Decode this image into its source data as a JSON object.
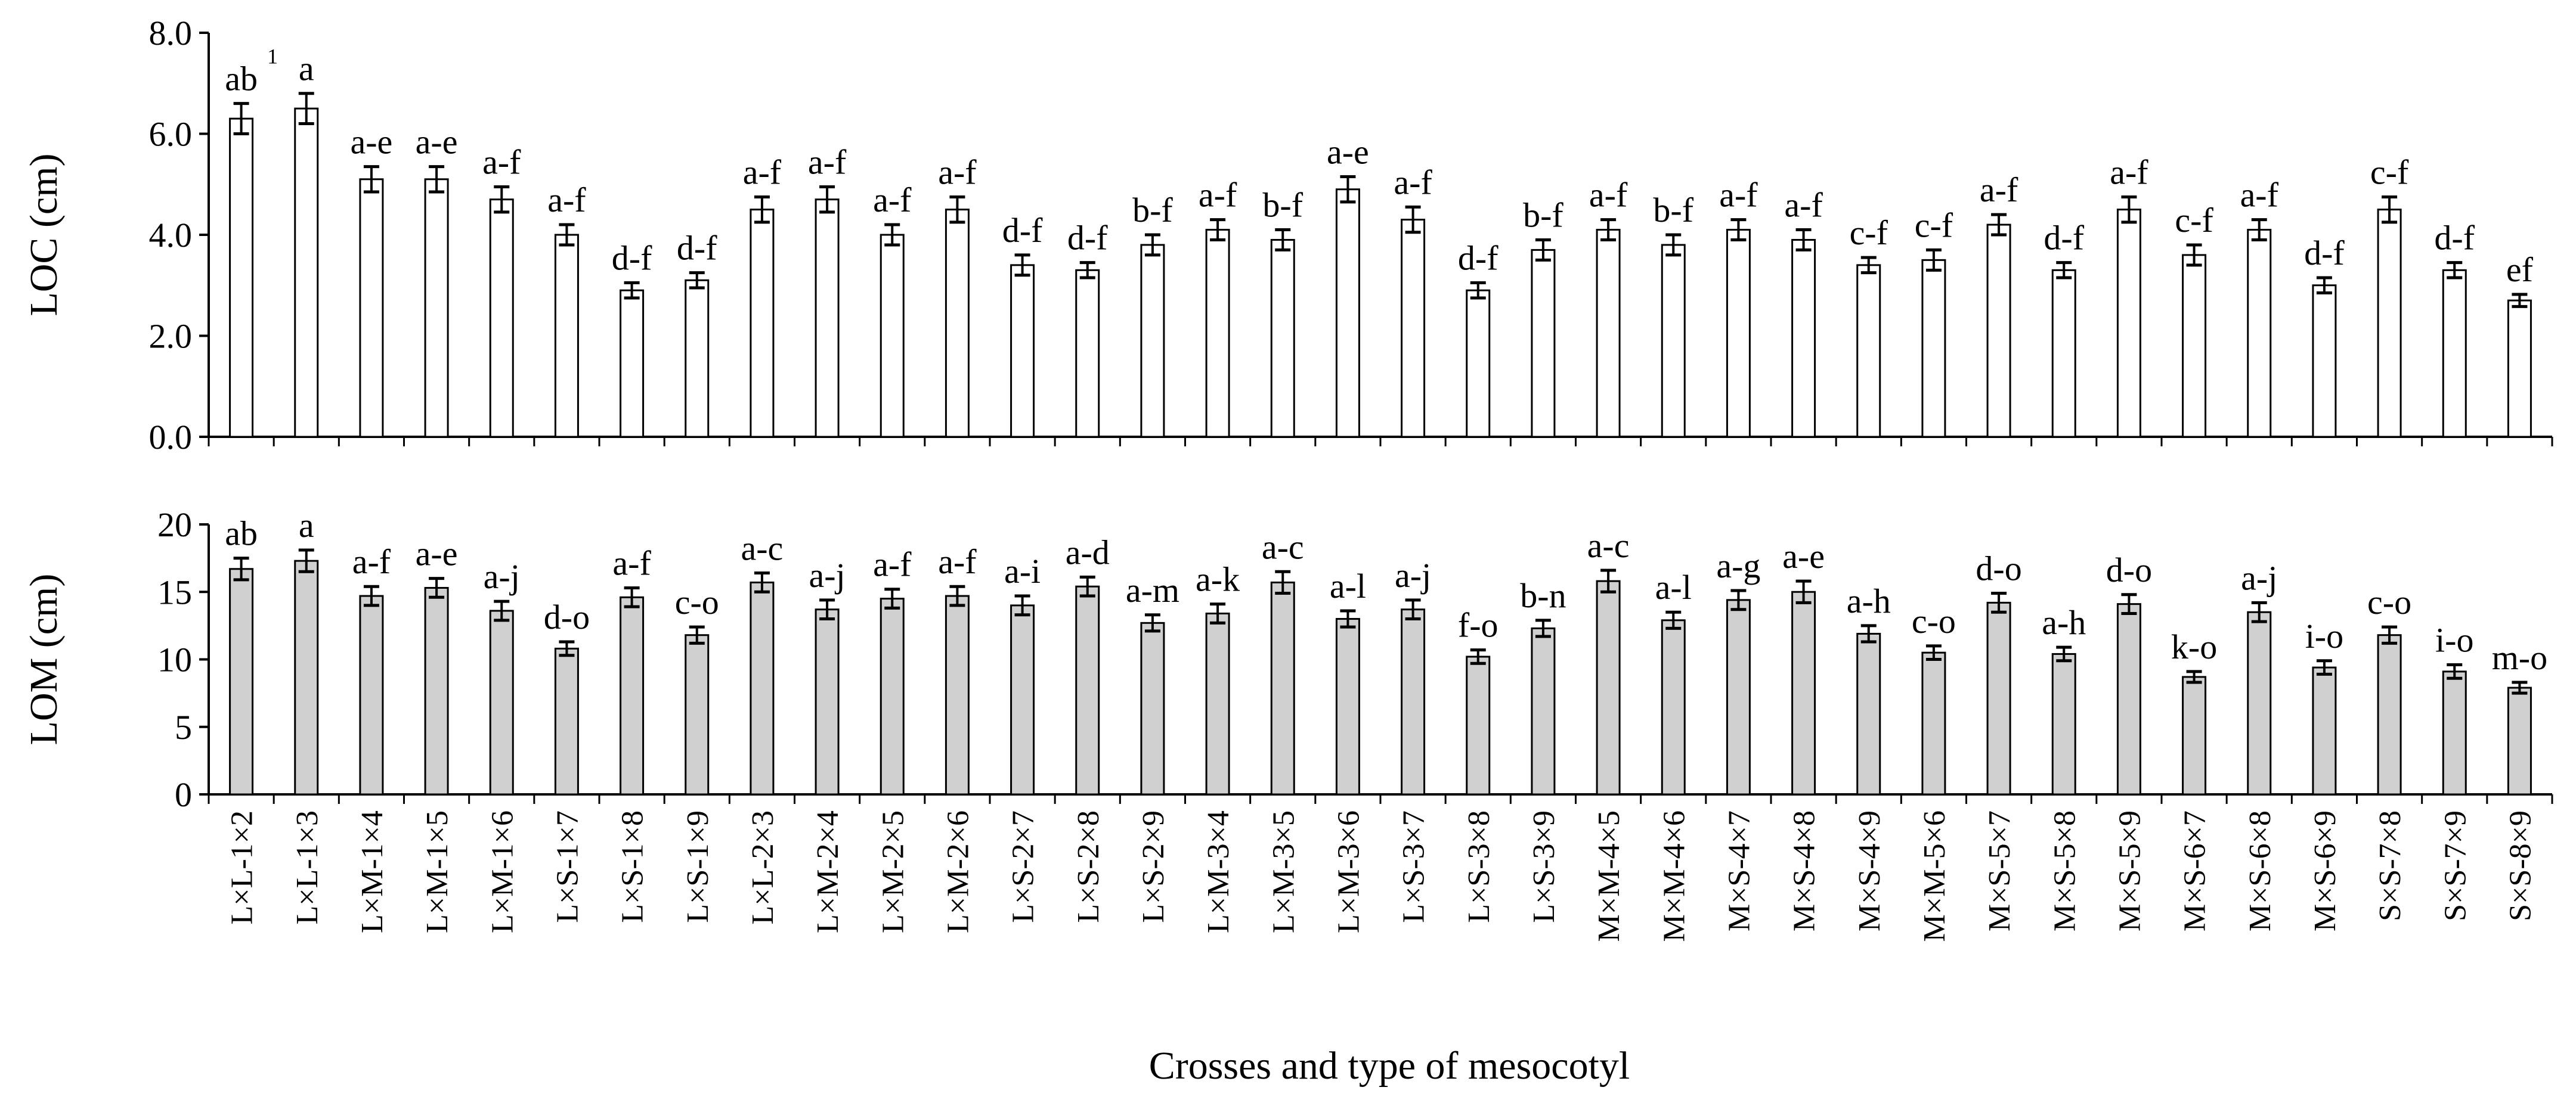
{
  "chart_data": [
    {
      "type": "bar",
      "panel": "top",
      "ylabel": "LOC (cm)",
      "ylim": [
        0,
        8
      ],
      "yticks": [
        "0.0",
        "2.0",
        "4.0",
        "6.0",
        "8.0"
      ],
      "ytick_values": [
        0,
        2,
        4,
        6,
        8
      ],
      "bar_color": "#ffffff",
      "values": [
        6.3,
        6.5,
        5.1,
        5.1,
        4.7,
        4.0,
        2.9,
        3.1,
        4.5,
        4.7,
        4.0,
        4.5,
        3.4,
        3.3,
        3.8,
        4.1,
        3.9,
        4.9,
        4.3,
        2.9,
        3.7,
        4.1,
        3.8,
        4.1,
        3.9,
        3.4,
        3.5,
        4.2,
        3.3,
        4.5,
        3.6,
        4.1,
        3.0,
        4.5,
        3.3,
        2.7
      ],
      "errors": [
        0.3,
        0.3,
        0.25,
        0.25,
        0.25,
        0.2,
        0.15,
        0.15,
        0.25,
        0.25,
        0.2,
        0.25,
        0.2,
        0.15,
        0.2,
        0.2,
        0.2,
        0.25,
        0.25,
        0.15,
        0.2,
        0.2,
        0.2,
        0.2,
        0.2,
        0.15,
        0.2,
        0.2,
        0.15,
        0.25,
        0.2,
        0.2,
        0.15,
        0.25,
        0.15,
        0.12
      ],
      "letters": [
        "ab",
        "a",
        "a-e",
        "a-e",
        "a-f",
        "a-f",
        "d-f",
        "d-f",
        "a-f",
        "a-f",
        "a-f",
        "a-f",
        "d-f",
        "d-f",
        "b-f",
        "a-f",
        "b-f",
        "a-e",
        "a-f",
        "d-f",
        "b-f",
        "a-f",
        "b-f",
        "a-f",
        "a-f",
        "c-f",
        "c-f",
        "a-f",
        "d-f",
        "a-f",
        "c-f",
        "a-f",
        "d-f",
        "c-f",
        "d-f",
        "ef"
      ],
      "footnote_marker": "1"
    },
    {
      "type": "bar",
      "panel": "bottom",
      "ylabel": "LOM (cm)",
      "xlabel": "Crosses and type of mesocotyl",
      "ylim": [
        0,
        20
      ],
      "yticks": [
        "0",
        "5",
        "10",
        "15",
        "20"
      ],
      "ytick_values": [
        0,
        5,
        10,
        15,
        20
      ],
      "bar_color": "#d0d0d0",
      "values": [
        16.7,
        17.3,
        14.7,
        15.3,
        13.6,
        10.8,
        14.6,
        11.8,
        15.7,
        13.7,
        14.5,
        14.7,
        14.0,
        15.4,
        12.7,
        13.4,
        15.7,
        13.0,
        13.7,
        10.2,
        12.3,
        15.8,
        12.9,
        14.4,
        15.0,
        11.9,
        10.5,
        14.2,
        10.4,
        14.1,
        8.7,
        13.5,
        9.4,
        11.8,
        9.1,
        7.9
      ],
      "errors": [
        0.8,
        0.8,
        0.7,
        0.7,
        0.7,
        0.5,
        0.7,
        0.6,
        0.7,
        0.7,
        0.7,
        0.7,
        0.7,
        0.7,
        0.6,
        0.7,
        0.8,
        0.6,
        0.7,
        0.5,
        0.6,
        0.8,
        0.6,
        0.7,
        0.8,
        0.6,
        0.5,
        0.7,
        0.5,
        0.7,
        0.4,
        0.7,
        0.5,
        0.6,
        0.5,
        0.4
      ],
      "letters": [
        "ab",
        "a",
        "a-f",
        "a-e",
        "a-j",
        "d-o",
        "a-f",
        "c-o",
        "a-c",
        "a-j",
        "a-f",
        "a-f",
        "a-i",
        "a-d",
        "a-m",
        "a-k",
        "a-c",
        "a-l",
        "a-j",
        "f-o",
        "b-n",
        "a-c",
        "a-l",
        "a-g",
        "a-e",
        "a-h",
        "c-o",
        "d-o",
        "a-h",
        "d-o",
        "k-o",
        "a-j",
        "i-o",
        "c-o",
        "i-o",
        "m-o"
      ]
    }
  ],
  "categories": [
    "L×L-1×2",
    "L×L-1×3",
    "L×M-1×4",
    "L×M-1×5",
    "L×M-1×6",
    "L×S-1×7",
    "L×S-1×8",
    "L×S-1×9",
    "L×L-2×3",
    "L×M-2×4",
    "L×M-2×5",
    "L×M-2×6",
    "L×S-2×7",
    "L×S-2×8",
    "L×S-2×9",
    "L×M-3×4",
    "L×M-3×5",
    "L×M-3×6",
    "L×S-3×7",
    "L×S-3×8",
    "L×S-3×9",
    "M×M-4×5",
    "M×M-4×6",
    "M×S-4×7",
    "M×S-4×8",
    "M×S-4×9",
    "M×M-5×6",
    "M×S-5×7",
    "M×S-5×8",
    "M×S-5×9",
    "M×S-6×7",
    "M×S-6×8",
    "M×S-6×9",
    "S×S-7×8",
    "S×S-7×9",
    "S×S-8×9"
  ],
  "colors": {
    "axis": "#000000",
    "bar_stroke": "#000000",
    "text": "#000000"
  }
}
